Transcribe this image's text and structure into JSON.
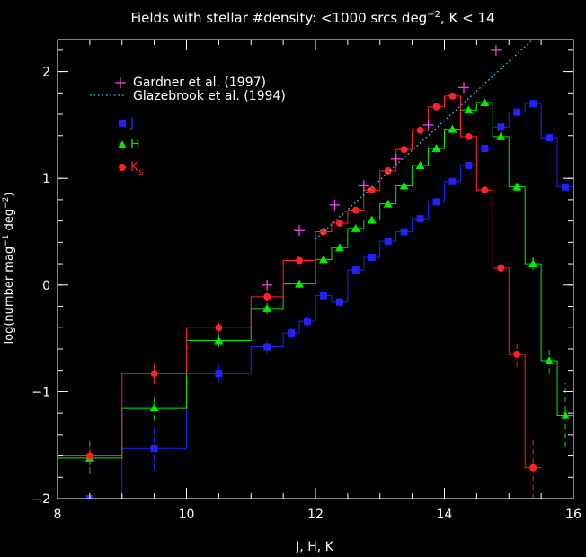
{
  "chart_data": {
    "type": "line",
    "title": "Fields with stellar #density: <1000 srcs deg",
    "title_sup": "−2",
    "title_tail": ", K < 14",
    "xlabel": "J, H, K",
    "ylabel": "log(number mag",
    "ylabel_sup1": "−1",
    "ylabel_mid": " deg",
    "ylabel_sup2": "−2",
    "ylabel_end": ")",
    "xlim": [
      8,
      16
    ],
    "ylim": [
      -2,
      2.3
    ],
    "xticks": [
      8,
      10,
      12,
      14,
      16
    ],
    "yticks": [
      -2,
      -1,
      0,
      1,
      2
    ],
    "background": "#000000",
    "axis_color": "#ffffff",
    "legend_position": "top-left",
    "legend": {
      "gardner": "Gardner et al. (1997)",
      "glazebrook": "Glazebrook et al. (1994)",
      "j": "J",
      "h": "H",
      "k": "K",
      "k_sub": "s"
    },
    "series": [
      {
        "name": "J",
        "color": "#2222ff",
        "marker": "square",
        "edges": [
          8,
          9,
          10,
          11,
          11.5,
          11.75,
          12,
          12.25,
          12.5,
          12.75,
          13,
          13.25,
          13.5,
          13.75,
          14,
          14.25,
          14.5,
          14.75,
          15,
          15.25,
          15.5,
          15.75,
          16
        ],
        "values": [
          -2.0,
          -1.53,
          -0.83,
          -0.58,
          -0.45,
          -0.34,
          -0.1,
          -0.16,
          0.14,
          0.26,
          0.41,
          0.5,
          0.62,
          0.78,
          0.97,
          1.12,
          1.28,
          1.48,
          1.62,
          1.7,
          1.38,
          0.92
        ],
        "errors": [
          0,
          0.2,
          0.08,
          0.06,
          0.05,
          0.05,
          0.04,
          0.04,
          0.03,
          0.03,
          0.03,
          0.03,
          0.02,
          0.02,
          0.02,
          0.02,
          0.02,
          0.02,
          0.02,
          0.02,
          0.02,
          0.02
        ]
      },
      {
        "name": "H",
        "color": "#00ee00",
        "marker": "triangle",
        "edges": [
          8,
          9,
          10,
          11,
          11.5,
          12,
          12.25,
          12.5,
          12.75,
          13,
          13.25,
          13.5,
          13.75,
          14,
          14.25,
          14.5,
          14.75,
          15,
          15.25,
          15.5,
          15.75,
          16
        ],
        "values": [
          -1.62,
          -1.15,
          -0.52,
          -0.22,
          0.01,
          0.24,
          0.35,
          0.53,
          0.61,
          0.76,
          0.93,
          1.12,
          1.28,
          1.46,
          1.64,
          1.71,
          1.39,
          0.92,
          0.2,
          -0.71,
          -1.22
        ],
        "errors": [
          0.15,
          0.12,
          0.06,
          0.05,
          0.04,
          0.03,
          0.03,
          0.03,
          0.03,
          0.02,
          0.02,
          0.02,
          0.02,
          0.02,
          0.02,
          0.02,
          0.02,
          0.04,
          0.06,
          0.12,
          0.3
        ]
      },
      {
        "name": "Ks",
        "color": "#ff2222",
        "marker": "circle",
        "edges": [
          8,
          9,
          10,
          11,
          11.5,
          12,
          12.25,
          12.5,
          12.75,
          13,
          13.25,
          13.5,
          13.75,
          14,
          14.25,
          14.5,
          14.75,
          15,
          15.25,
          15.5
        ],
        "values": [
          -1.6,
          -0.83,
          -0.4,
          -0.11,
          0.23,
          0.5,
          0.58,
          0.7,
          0.89,
          1.07,
          1.27,
          1.45,
          1.67,
          1.77,
          1.39,
          0.89,
          0.16,
          -0.65,
          -1.71
        ],
        "errors": [
          0.15,
          0.1,
          0.05,
          0.04,
          0.03,
          0.03,
          0.03,
          0.03,
          0.02,
          0.02,
          0.02,
          0.02,
          0.02,
          0.02,
          0.02,
          0.02,
          0.04,
          0.12,
          0.3
        ]
      },
      {
        "name": "Gardner et al. (1997)",
        "color": "#ee44ee",
        "marker": "plus",
        "x": [
          11.25,
          11.75,
          12.3,
          12.75,
          13.25,
          13.75,
          14.3,
          14.8
        ],
        "y": [
          0.0,
          0.51,
          0.75,
          0.93,
          1.18,
          1.5,
          1.85,
          2.2
        ]
      },
      {
        "name": "Glazebrook et al. (1994)",
        "color": "#44ccff",
        "style": "dotted",
        "x": [
          12.0,
          16.0
        ],
        "y": [
          0.43,
          2.65
        ]
      }
    ]
  }
}
